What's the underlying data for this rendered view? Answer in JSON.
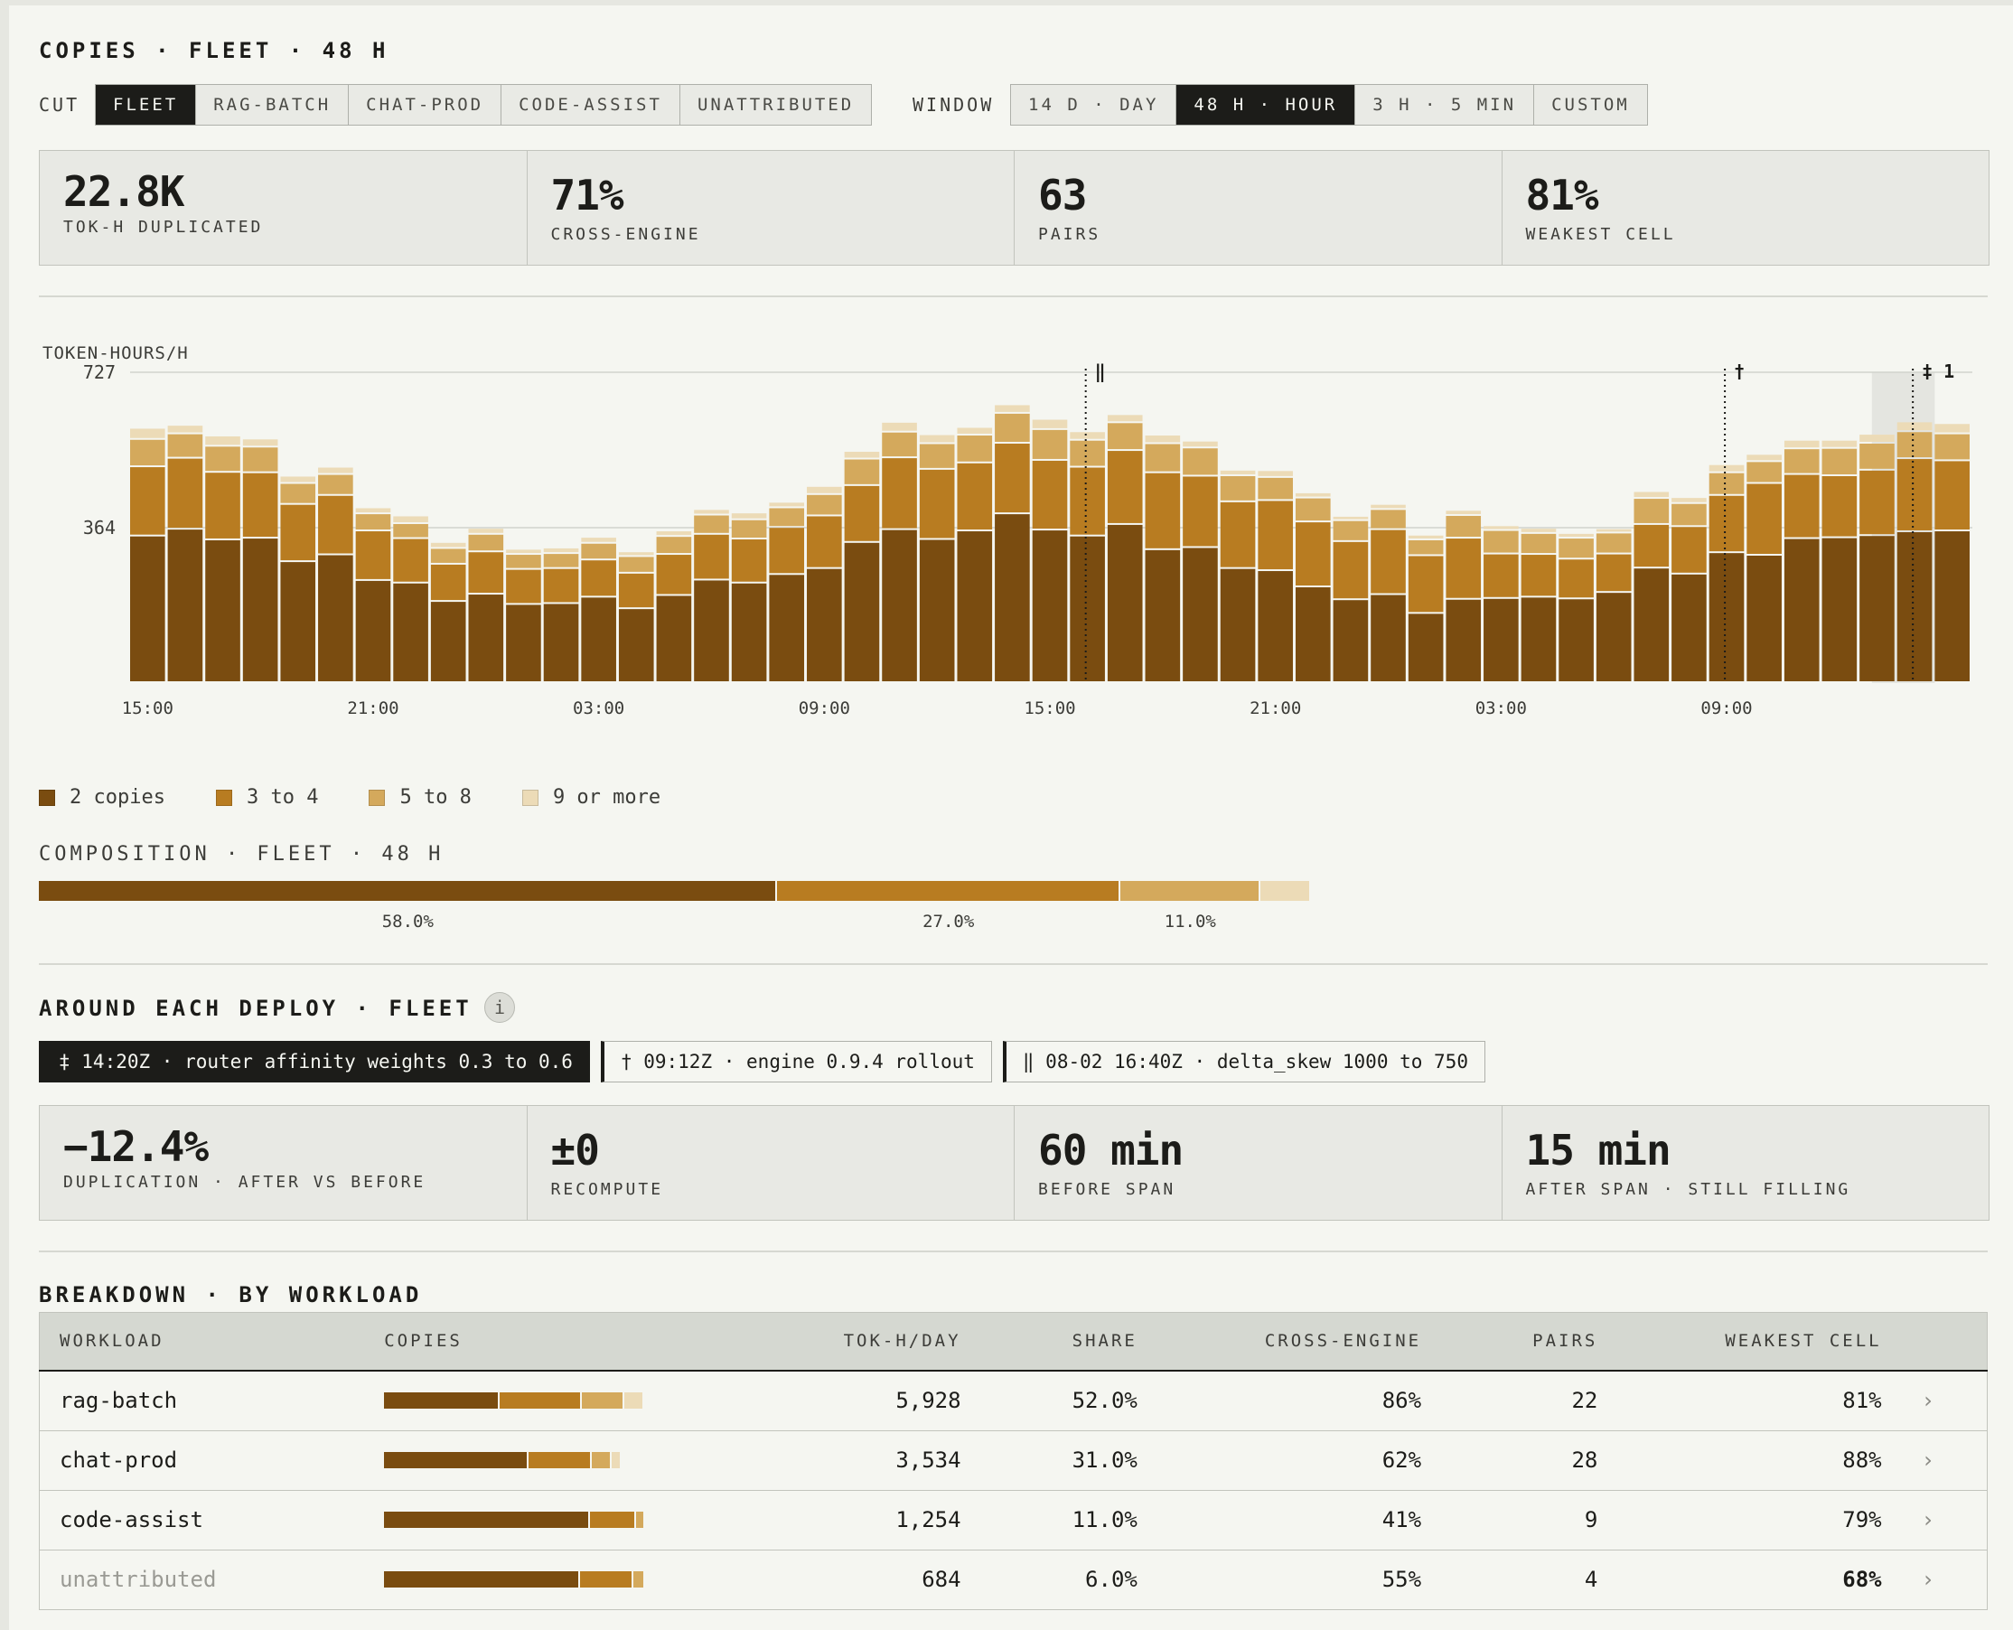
{
  "header": {
    "title": "COPIES · FLEET · 48 H"
  },
  "cut": {
    "label": "CUT",
    "options": [
      "FLEET",
      "RAG-BATCH",
      "CHAT-PROD",
      "CODE-ASSIST",
      "UNATTRIBUTED"
    ],
    "selected": "FLEET"
  },
  "window": {
    "label": "WINDOW",
    "options": [
      "14 D · DAY",
      "48 H · HOUR",
      "3 H · 5 MIN",
      "CUSTOM"
    ],
    "selected": "48 H · HOUR"
  },
  "kpis": [
    {
      "value": "22.8K",
      "label": "TOK-H DUPLICATED"
    },
    {
      "value": "71%",
      "label": "CROSS-ENGINE"
    },
    {
      "value": "63",
      "label": "PAIRS"
    },
    {
      "value": "81%",
      "label": "WEAKEST CELL"
    }
  ],
  "colors": {
    "c2": "#7a4c10",
    "c34": "#b87c21",
    "c58": "#d4a95c",
    "c9": "#ecdbb7",
    "ink": "#1c1c19"
  },
  "chart_data": {
    "type": "bar",
    "stacked": true,
    "ylabel": "TOKEN-HOURS/H",
    "y_ticks": [
      "727",
      "364"
    ],
    "ylim": [
      0,
      727
    ],
    "x_tick_labels": [
      "15:00",
      "21:00",
      "03:00",
      "09:00",
      "15:00",
      "21:00",
      "03:00",
      "09:00"
    ],
    "x_tick_hours": [
      0,
      6,
      12,
      18,
      24,
      30,
      36,
      42
    ],
    "hours": 48,
    "series": [
      {
        "name": "2 copies",
        "values": [
          343,
          359,
          334,
          338,
          283,
          299,
          239,
          233,
          190,
          207,
          183,
          185,
          200,
          173,
          204,
          240,
          233,
          253,
          267,
          328,
          358,
          335,
          355,
          395,
          357,
          343,
          370,
          311,
          316,
          267,
          262,
          224,
          194,
          206,
          162,
          195,
          197,
          200,
          196,
          211,
          268,
          254,
          304,
          298,
          337,
          339,
          344,
          353,
          355
        ]
      },
      {
        "name": "3 to 4",
        "values": [
          162,
          166,
          158,
          153,
          134,
          139,
          116,
          104,
          87,
          99,
          82,
          82,
          87,
          83,
          96,
          107,
          103,
          110,
          123,
          133,
          168,
          164,
          159,
          165,
          163,
          161,
          173,
          180,
          167,
          156,
          164,
          152,
          136,
          152,
          135,
          143,
          104,
          100,
          93,
          90,
          102,
          111,
          134,
          168,
          150,
          145,
          153,
          171,
          164
        ]
      },
      {
        "name": "5 to 8",
        "values": [
          64,
          57,
          61,
          60,
          49,
          49,
          40,
          35,
          37,
          41,
          35,
          35,
          39,
          39,
          42,
          45,
          45,
          46,
          50,
          62,
          60,
          60,
          65,
          70,
          72,
          63,
          65,
          68,
          66,
          61,
          54,
          56,
          49,
          47,
          37,
          53,
          55,
          49,
          49,
          49,
          61,
          54,
          53,
          51,
          60,
          64,
          63,
          63,
          63
        ]
      },
      {
        "name": "9 or more",
        "values": [
          26,
          20,
          24,
          19,
          17,
          17,
          14,
          18,
          14,
          14,
          12,
          13,
          14,
          11,
          13,
          13,
          16,
          13,
          19,
          18,
          23,
          21,
          18,
          20,
          24,
          20,
          19,
          20,
          16,
          13,
          16,
          12,
          10,
          12,
          11,
          12,
          11,
          12,
          11,
          10,
          16,
          14,
          19,
          17,
          20,
          19,
          21,
          23,
          24
        ]
      }
    ],
    "markers": [
      {
        "hour": 25,
        "symbol": "‖",
        "label": ""
      },
      {
        "hour": 42,
        "symbol": "†",
        "label": ""
      },
      {
        "hour": 47,
        "symbol": "‡",
        "label": "1"
      }
    ],
    "highlight_hour": 47
  },
  "legend": [
    {
      "label": "2 copies",
      "color": "#7a4c10"
    },
    {
      "label": "3 to 4",
      "color": "#b87c21"
    },
    {
      "label": "5 to 8",
      "color": "#d4a95c"
    },
    {
      "label": "9 or more",
      "color": "#ecdbb7"
    }
  ],
  "composition": {
    "title": "COMPOSITION · FLEET · 48 H",
    "segments": [
      {
        "label": "58.0%",
        "share": 58.0,
        "color": "#7a4c10"
      },
      {
        "label": "27.0%",
        "share": 27.0,
        "color": "#b87c21"
      },
      {
        "label": "11.0%",
        "share": 11.0,
        "color": "#d4a95c"
      },
      {
        "label": "",
        "share": 4.0,
        "color": "#ecdbb7"
      }
    ]
  },
  "deploy": {
    "title": "AROUND EACH DEPLOY · FLEET",
    "info_icon": "i",
    "tabs": [
      "‡ 14:20Z · router affinity weights 0.3 to 0.6",
      "† 09:12Z · engine 0.9.4 rollout",
      "‖ 08-02 16:40Z · delta_skew 1000 to 750"
    ],
    "selected": 0,
    "kpis": [
      {
        "value": "−12.4%",
        "label": "DUPLICATION · AFTER VS BEFORE"
      },
      {
        "value": "±0",
        "label": "RECOMPUTE"
      },
      {
        "value": "60 min",
        "label": "BEFORE SPAN"
      },
      {
        "value": "15 min",
        "label": "AFTER SPAN · STILL FILLING"
      }
    ]
  },
  "breakdown": {
    "title": "BREAKDOWN · BY WORKLOAD",
    "columns": [
      "WORKLOAD",
      "COPIES",
      "TOK-H/DAY",
      "SHARE",
      "CROSS-ENGINE",
      "PAIRS",
      "WEAKEST CELL"
    ],
    "rows": [
      {
        "workload": "rag-batch",
        "copies": [
          44,
          31,
          16,
          7
        ],
        "tokh": "5,928",
        "share": "52.0%",
        "cross": "86%",
        "pairs": "22",
        "weakest": "81%"
      },
      {
        "workload": "chat-prod",
        "copies": [
          55,
          24,
          7,
          3
        ],
        "tokh": "3,534",
        "share": "31.0%",
        "cross": "62%",
        "pairs": "28",
        "weakest": "88%"
      },
      {
        "workload": "code-assist",
        "copies": [
          79,
          17,
          3,
          0
        ],
        "tokh": "1,254",
        "share": "11.0%",
        "cross": "41%",
        "pairs": "9",
        "weakest": "79%"
      },
      {
        "workload": "unattributed",
        "copies": [
          75,
          20,
          4,
          0
        ],
        "tokh": "684",
        "share": "6.0%",
        "cross": "55%",
        "pairs": "4",
        "weakest": "68%"
      }
    ]
  }
}
